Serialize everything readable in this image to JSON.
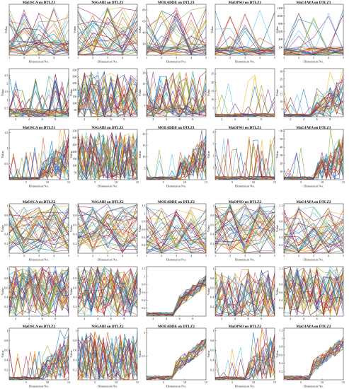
{
  "figure": {
    "background": "#ffffff",
    "palette": [
      "#0072BD",
      "#D95319",
      "#EDB120",
      "#7E2F8E",
      "#77AC30",
      "#4DBEEE",
      "#A2142F"
    ]
  },
  "chart_data": [
    {
      "type": "line",
      "title": "MaOSCA on DTLZ1",
      "xlabel": "Dimension No.",
      "ylabel": "Value",
      "x_ticks": [
        "1",
        "2",
        "3",
        "4",
        "5"
      ],
      "y_ticks": [],
      "n_dims": 5,
      "ylim": [
        0,
        1
      ],
      "n_series": 35,
      "style": "smallmax",
      "seed": 11
    },
    {
      "type": "line",
      "title": "NSGAIII on DTLZ1",
      "xlabel": "Dimension No.",
      "ylabel": "Value",
      "x_ticks": [
        "1",
        "2",
        "3",
        "4",
        "5"
      ],
      "y_ticks": [],
      "n_dims": 5,
      "ylim": [
        0,
        1
      ],
      "n_series": 35,
      "style": "wide",
      "seed": 12
    },
    {
      "type": "line",
      "title": "MOEADDE on DTLZ1",
      "xlabel": "Dimension No.",
      "ylabel": "Value",
      "x_ticks": [
        "1",
        "2",
        "3",
        "4",
        "5"
      ],
      "y_ticks": [
        "20",
        "40",
        "60",
        "80"
      ],
      "n_dims": 5,
      "ylim": [
        0,
        90
      ],
      "n_series": 35,
      "style": "spiky",
      "seed": 13
    },
    {
      "type": "line",
      "title": "MaOPSO on DTLZ1",
      "xlabel": "Dimension No.",
      "ylabel": "Value",
      "x_ticks": [
        "1",
        "2",
        "3",
        "4",
        "5"
      ],
      "y_ticks": [],
      "n_dims": 5,
      "ylim": [
        0,
        1
      ],
      "n_series": 30,
      "style": "low",
      "seed": 14
    },
    {
      "type": "line",
      "title": "MaOJAYA on DTLZ1",
      "xlabel": "Dimension No.",
      "ylabel": "Value",
      "x_ticks": [
        "1",
        "2",
        "3",
        "4",
        "5"
      ],
      "y_ticks": [
        "200",
        "400",
        "600",
        "800",
        "1000",
        "1200"
      ],
      "n_dims": 5,
      "ylim": [
        0,
        1300
      ],
      "n_series": 30,
      "style": "low",
      "seed": 15
    },
    {
      "type": "line",
      "title": "",
      "xlabel": "",
      "ylabel": "Value",
      "x_ticks": [
        "2",
        "4",
        "6",
        "8"
      ],
      "y_ticks": [
        "0.5",
        "1",
        "1.5",
        "2",
        "2.5"
      ],
      "n_dims": 10,
      "ylim": [
        0,
        2.9
      ],
      "n_series": 35,
      "style": "low",
      "seed": 21
    },
    {
      "type": "line",
      "title": "",
      "xlabel": "",
      "ylabel": "Value",
      "x_ticks": [
        "2",
        "4",
        "6",
        "8"
      ],
      "y_ticks": [
        "50",
        "100",
        "150",
        "200",
        "250",
        "300",
        "350"
      ],
      "n_dims": 10,
      "ylim": [
        0,
        360
      ],
      "n_series": 35,
      "style": "wide",
      "seed": 22
    },
    {
      "type": "line",
      "title": "",
      "xlabel": "",
      "ylabel": "Value",
      "x_ticks": [
        "2",
        "4",
        "6",
        "8"
      ],
      "y_ticks": [
        "5",
        "10",
        "15",
        "20"
      ],
      "n_dims": 10,
      "ylim": [
        0,
        22
      ],
      "n_series": 35,
      "style": "spiky",
      "seed": 23
    },
    {
      "type": "line",
      "title": "",
      "xlabel": "",
      "ylabel": "Value",
      "x_ticks": [
        "2",
        "4",
        "6",
        "8"
      ],
      "y_ticks": [
        "5",
        "10",
        "15",
        "20",
        "25"
      ],
      "n_dims": 10,
      "ylim": [
        0,
        28
      ],
      "n_series": 25,
      "style": "flat",
      "seed": 24
    },
    {
      "type": "line",
      "title": "",
      "xlabel": "",
      "ylabel": "Value",
      "x_ticks": [
        "2",
        "4",
        "6",
        "8"
      ],
      "y_ticks": [
        "5",
        "10",
        "15",
        "20",
        "25",
        "30"
      ],
      "n_dims": 10,
      "ylim": [
        0,
        32
      ],
      "n_series": 30,
      "style": "tail",
      "seed": 25
    },
    {
      "type": "line",
      "title": "MaOSCA on DTLZ1",
      "xlabel": "Dimension No.",
      "ylabel": "Value",
      "x_ticks": [
        "5",
        "10",
        "15"
      ],
      "y_ticks": [
        "0.5",
        "1",
        "1.5"
      ],
      "n_dims": 15,
      "ylim": [
        0,
        1.6
      ],
      "n_series": 30,
      "style": "tail",
      "seed": 31
    },
    {
      "type": "line",
      "title": "NSGAIII on DTLZ1",
      "xlabel": "Dimension No.",
      "ylabel": "Value",
      "x_ticks": [
        "5",
        "10",
        "15"
      ],
      "y_ticks": [
        "50",
        "100",
        "150",
        "200",
        "250",
        "300",
        "350"
      ],
      "n_dims": 15,
      "ylim": [
        0,
        360
      ],
      "n_series": 35,
      "style": "wide",
      "seed": 32
    },
    {
      "type": "line",
      "title": "MOEADDE on DTLZ1",
      "xlabel": "Dimension No.",
      "ylabel": "Value",
      "x_ticks": [
        "5",
        "10",
        "15"
      ],
      "y_ticks": [
        "5",
        "10",
        "15",
        "20"
      ],
      "n_dims": 15,
      "ylim": [
        0,
        22
      ],
      "n_series": 30,
      "style": "tail",
      "seed": 33
    },
    {
      "type": "line",
      "title": "MaOPSO on DTLZ1",
      "xlabel": "Dimension No.",
      "ylabel": "Value",
      "x_ticks": [
        "5",
        "10",
        "15"
      ],
      "y_ticks": [
        "1",
        "2",
        "3",
        "4"
      ],
      "n_dims": 15,
      "ylim": [
        0,
        4.2
      ],
      "n_series": 25,
      "style": "flat",
      "seed": 34
    },
    {
      "type": "line",
      "title": "MaOJAYA on DTLZ1",
      "xlabel": "Dimension No.",
      "ylabel": "Value",
      "x_ticks": [
        "5",
        "10",
        "15"
      ],
      "y_ticks": [
        "10",
        "20",
        "30",
        "40",
        "50",
        "60"
      ],
      "n_dims": 15,
      "ylim": [
        0,
        62
      ],
      "n_series": 30,
      "style": "tail",
      "seed": 35
    },
    {
      "type": "line",
      "title": "MaOSCA on DTLZ2",
      "xlabel": "Dimension No.",
      "ylabel": "Value",
      "x_ticks": [
        "1",
        "2",
        "3",
        "4",
        "5"
      ],
      "y_ticks": [
        "0.2",
        "0.4",
        "0.6",
        "0.8",
        "1"
      ],
      "n_dims": 5,
      "ylim": [
        0,
        1.05
      ],
      "n_series": 40,
      "style": "dense",
      "seed": 41
    },
    {
      "type": "line",
      "title": "NSGAIII on DTLZ2",
      "xlabel": "Dimension No.",
      "ylabel": "Value",
      "x_ticks": [
        "1",
        "2",
        "3",
        "4",
        "5"
      ],
      "y_ticks": [
        "0.2",
        "0.4",
        "0.6",
        "0.8",
        "1"
      ],
      "n_dims": 5,
      "ylim": [
        0,
        1.05
      ],
      "n_series": 40,
      "style": "dense",
      "seed": 42
    },
    {
      "type": "line",
      "title": "MOEADDE on DTLZ2",
      "xlabel": "Dimension No.",
      "ylabel": "Value",
      "x_ticks": [
        "1",
        "2",
        "3",
        "4",
        "5"
      ],
      "y_ticks": [
        "0.2",
        "0.4",
        "0.6",
        "0.8",
        "1",
        "1.2"
      ],
      "n_dims": 5,
      "ylim": [
        0,
        1.25
      ],
      "n_series": 35,
      "style": "wide",
      "seed": 43
    },
    {
      "type": "line",
      "title": "MaOPSO on DTLZ2",
      "xlabel": "Dimension No.",
      "ylabel": "Value",
      "x_ticks": [
        "1",
        "2",
        "3",
        "4",
        "5"
      ],
      "y_ticks": [
        "0.2",
        "0.4",
        "0.6",
        "0.8",
        "1"
      ],
      "n_dims": 5,
      "ylim": [
        0,
        1.05
      ],
      "n_series": 40,
      "style": "dense",
      "seed": 44
    },
    {
      "type": "line",
      "title": "MaOJAYA on DTLZ2",
      "xlabel": "Dimension No.",
      "ylabel": "Value",
      "x_ticks": [
        "1",
        "2",
        "3",
        "4",
        "5"
      ],
      "y_ticks": [
        "0.2",
        "0.4",
        "0.6",
        "0.8",
        "1",
        "1.2"
      ],
      "n_dims": 5,
      "ylim": [
        0,
        1.25
      ],
      "n_series": 35,
      "style": "wide",
      "seed": 45
    },
    {
      "type": "line",
      "title": "",
      "xlabel": "",
      "ylabel": "Value",
      "x_ticks": [
        "2",
        "4",
        "6",
        "8"
      ],
      "y_ticks": [
        "0.2",
        "0.4",
        "0.6",
        "0.8",
        "1"
      ],
      "n_dims": 10,
      "ylim": [
        0,
        1.05
      ],
      "n_series": 40,
      "style": "dense",
      "seed": 51
    },
    {
      "type": "line",
      "title": "",
      "xlabel": "",
      "ylabel": "Value",
      "x_ticks": [
        "2",
        "4",
        "6",
        "8"
      ],
      "y_ticks": [
        "0.2",
        "0.4",
        "0.6",
        "0.8",
        "1"
      ],
      "n_dims": 10,
      "ylim": [
        0,
        1.05
      ],
      "n_series": 40,
      "style": "dense",
      "seed": 52
    },
    {
      "type": "line",
      "title": "",
      "xlabel": "",
      "ylabel": "Value",
      "x_ticks": [
        "2",
        "4",
        "6",
        "8"
      ],
      "y_ticks": [
        "0.2",
        "0.4",
        "0.6",
        "0.8",
        "1",
        "1.2"
      ],
      "n_dims": 10,
      "ylim": [
        0,
        1.25
      ],
      "n_series": 35,
      "style": "rise",
      "seed": 53
    },
    {
      "type": "line",
      "title": "",
      "xlabel": "",
      "ylabel": "Value",
      "x_ticks": [
        "2",
        "4",
        "6",
        "8"
      ],
      "y_ticks": [
        "0.2",
        "0.4",
        "0.6",
        "0.8",
        "1"
      ],
      "n_dims": 10,
      "ylim": [
        0,
        1.05
      ],
      "n_series": 30,
      "style": "wide",
      "seed": 54
    },
    {
      "type": "line",
      "title": "",
      "xlabel": "",
      "ylabel": "Value",
      "x_ticks": [
        "2",
        "4",
        "6",
        "8"
      ],
      "y_ticks": [
        "0.2",
        "0.4",
        "0.6",
        "0.8",
        "1",
        "1.2"
      ],
      "n_dims": 10,
      "ylim": [
        0,
        1.25
      ],
      "n_series": 35,
      "style": "dense",
      "seed": 55
    },
    {
      "type": "line",
      "title": "MaOSCA on DTLZ2",
      "xlabel": "Dimension No.",
      "ylabel": "Value",
      "x_ticks": [
        "5",
        "10",
        "15"
      ],
      "y_ticks": [
        "0.2",
        "0.4",
        "0.6",
        "0.8",
        "1"
      ],
      "n_dims": 15,
      "ylim": [
        0,
        1.05
      ],
      "n_series": 30,
      "style": "tail",
      "seed": 61
    },
    {
      "type": "line",
      "title": "NSGAIII on DTLZ2",
      "xlabel": "Dimension No.",
      "ylabel": "Value",
      "x_ticks": [
        "5",
        "10",
        "15"
      ],
      "y_ticks": [
        "0.2",
        "0.4",
        "0.6",
        "0.8",
        "1"
      ],
      "n_dims": 15,
      "ylim": [
        0,
        1.05
      ],
      "n_series": 30,
      "style": "wide",
      "seed": 62
    },
    {
      "type": "line",
      "title": "MOEADDE on DTLZ2",
      "xlabel": "Dimension No.",
      "ylabel": "Value",
      "x_ticks": [
        "5",
        "10",
        "15"
      ],
      "y_ticks": [
        "0.5",
        "1"
      ],
      "n_dims": 15,
      "ylim": [
        0,
        1.1
      ],
      "n_series": 25,
      "style": "rise",
      "seed": 63
    },
    {
      "type": "line",
      "title": "MaOPSO on DTLZ2",
      "xlabel": "Dimension No.",
      "ylabel": "Value",
      "x_ticks": [
        "5",
        "10",
        "15"
      ],
      "y_ticks": [
        "0.2",
        "0.4",
        "0.6",
        "0.8",
        "1"
      ],
      "n_dims": 15,
      "ylim": [
        0,
        1.05
      ],
      "n_series": 25,
      "style": "tail",
      "seed": 64
    },
    {
      "type": "line",
      "title": "MaOJAYA on DTLZ2",
      "xlabel": "Dimension No.",
      "ylabel": "Value",
      "x_ticks": [
        "5",
        "10",
        "15"
      ],
      "y_ticks": [
        "0.2",
        "0.4",
        "0.6",
        "0.8",
        "1",
        "1.2"
      ],
      "n_dims": 15,
      "ylim": [
        0,
        1.25
      ],
      "n_series": 25,
      "style": "rise",
      "seed": 65
    }
  ]
}
